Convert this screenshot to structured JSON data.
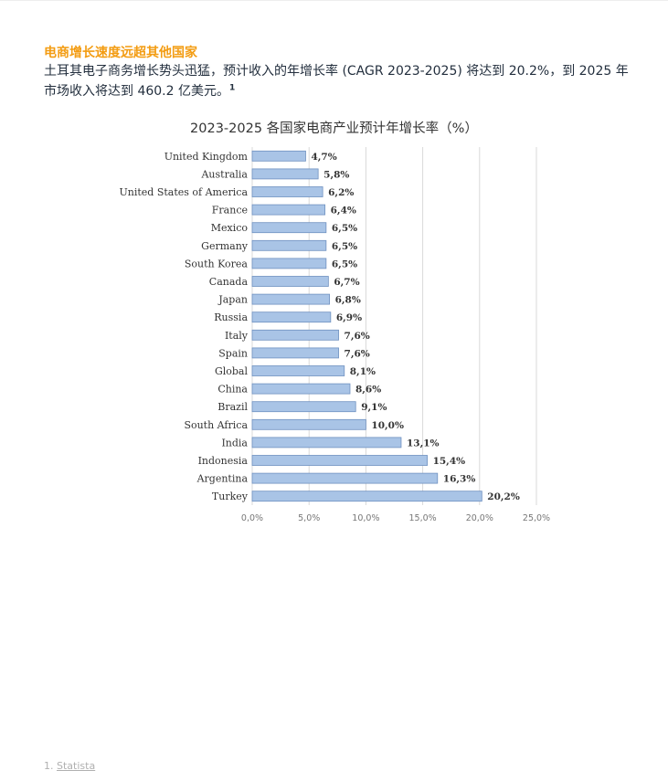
{
  "heading": "电商增长速度远超其他国家",
  "intro_text": "土耳其电子商务增长势头迅猛，预计收入的年增长率 (CAGR 2023-2025) 将达到 20.2%，到 2025 年市场收入将达到 460.2 亿美元。",
  "intro_footnote_ref": "1",
  "footnote": {
    "number": "1.",
    "link_text": "Statista"
  },
  "colors": {
    "heading": "#f39c12",
    "bar_fill": "#a9c4e6",
    "bar_stroke": "#6f91c0",
    "grid": "#d9d9d9"
  },
  "chart_data": {
    "type": "bar",
    "orientation": "horizontal",
    "title": "2023-2025 各国家电商产业预计年增长率（%）",
    "categories": [
      "United Kingdom",
      "Australia",
      "United States of America",
      "France",
      "Mexico",
      "Germany",
      "South Korea",
      "Canada",
      "Japan",
      "Russia",
      "Italy",
      "Spain",
      "Global",
      "China",
      "Brazil",
      "South Africa",
      "India",
      "Indonesia",
      "Argentina",
      "Turkey"
    ],
    "values": [
      4.7,
      5.8,
      6.2,
      6.4,
      6.5,
      6.5,
      6.5,
      6.7,
      6.8,
      6.9,
      7.6,
      7.6,
      8.1,
      8.6,
      9.1,
      10.0,
      13.1,
      15.4,
      16.3,
      20.2
    ],
    "value_labels": [
      "4,7%",
      "5,8%",
      "6,2%",
      "6,4%",
      "6,5%",
      "6,5%",
      "6,5%",
      "6,7%",
      "6,8%",
      "6,9%",
      "7,6%",
      "7,6%",
      "8,1%",
      "8,6%",
      "9,1%",
      "10,0%",
      "13,1%",
      "15,4%",
      "16,3%",
      "20,2%"
    ],
    "xlim": [
      0,
      25
    ],
    "ticks": [
      0,
      5,
      10,
      15,
      20,
      25
    ],
    "tick_labels": [
      "0,0%",
      "5,0%",
      "10,0%",
      "15,0%",
      "20,0%",
      "25,0%"
    ],
    "grid": true,
    "legend": "none"
  }
}
